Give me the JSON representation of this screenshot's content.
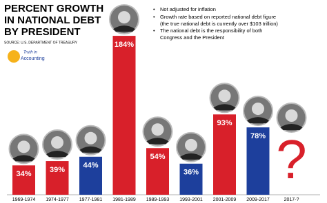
{
  "chart_data": {
    "type": "bar",
    "title_lines": [
      "PERCENT GROWTH",
      "IN NATIONAL DEBT",
      "BY PRESIDENT"
    ],
    "source": "SOURCE: U.S. DEPARTMENT OF TREASURY",
    "logo": [
      "Truth in",
      "Accounting"
    ],
    "notes": [
      "Not adjusted for inflation",
      "Growth rate based on reported national debt figure",
      "(the true national debt is currently over $103 trillion)",
      "The national debt is the responsibility of both",
      "Congress and the President"
    ],
    "categories": [
      "1969-1974",
      "1974-1977",
      "1977-1981",
      "1981-1989",
      "1989-1993",
      "1993-2001",
      "2001-2009",
      "2009-2017",
      "2017-?"
    ],
    "values": [
      34,
      39,
      44,
      184,
      54,
      36,
      93,
      78,
      null
    ],
    "value_labels": [
      "34%",
      "39%",
      "44%",
      "184%",
      "54%",
      "36%",
      "93%",
      "78%",
      "?"
    ],
    "colors": [
      "#d8202a",
      "#d8202a",
      "#1d3f9c",
      "#d8202a",
      "#d8202a",
      "#1d3f9c",
      "#d8202a",
      "#1d3f9c",
      "#d8202a"
    ]
  }
}
